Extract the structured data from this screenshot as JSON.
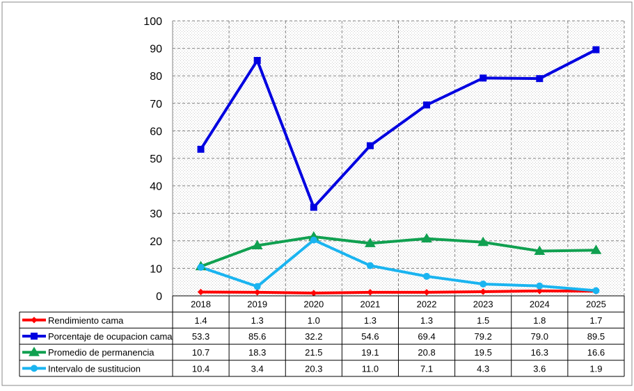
{
  "chart_data": {
    "type": "line",
    "categories": [
      "2018",
      "2019",
      "2020",
      "2021",
      "2022",
      "2023",
      "2024",
      "2025"
    ],
    "ylim": [
      0,
      100
    ],
    "yticks": [
      0,
      10,
      20,
      30,
      40,
      50,
      60,
      70,
      80,
      90,
      100
    ],
    "grid": true,
    "legend": "data-table",
    "series": [
      {
        "name": "Rendimiento cama",
        "marker": "diamond",
        "color": "#ff0000",
        "values": [
          1.4,
          1.3,
          1.0,
          1.3,
          1.3,
          1.5,
          1.8,
          1.7
        ],
        "labels": [
          "1.4",
          "1.3",
          "1.0",
          "1.3",
          "1.3",
          "1.5",
          "1.8",
          "1.7"
        ]
      },
      {
        "name": "Porcentaje de ocupacion cama",
        "marker": "square",
        "color": "#0000e0",
        "values": [
          53.3,
          85.6,
          32.2,
          54.6,
          69.4,
          79.2,
          79.0,
          89.5
        ],
        "labels": [
          "53.3",
          "85.6",
          "32.2",
          "54.6",
          "69.4",
          "79.2",
          "79.0",
          "89.5"
        ]
      },
      {
        "name": "Promedio de permanencia",
        "marker": "triangle",
        "color": "#10a050",
        "values": [
          10.7,
          18.3,
          21.5,
          19.1,
          20.8,
          19.5,
          16.3,
          16.6
        ],
        "labels": [
          "10.7",
          "18.3",
          "21.5",
          "19.1",
          "20.8",
          "19.5",
          "16.3",
          "16.6"
        ]
      },
      {
        "name": "Intervalo de sustitucion",
        "marker": "circle",
        "color": "#1ab4f0",
        "values": [
          10.4,
          3.4,
          20.3,
          11.0,
          7.1,
          4.3,
          3.6,
          1.9
        ],
        "labels": [
          "10.4",
          "3.4",
          "20.3",
          "11.0",
          "7.1",
          "4.3",
          "3.6",
          "1.9"
        ]
      }
    ]
  }
}
